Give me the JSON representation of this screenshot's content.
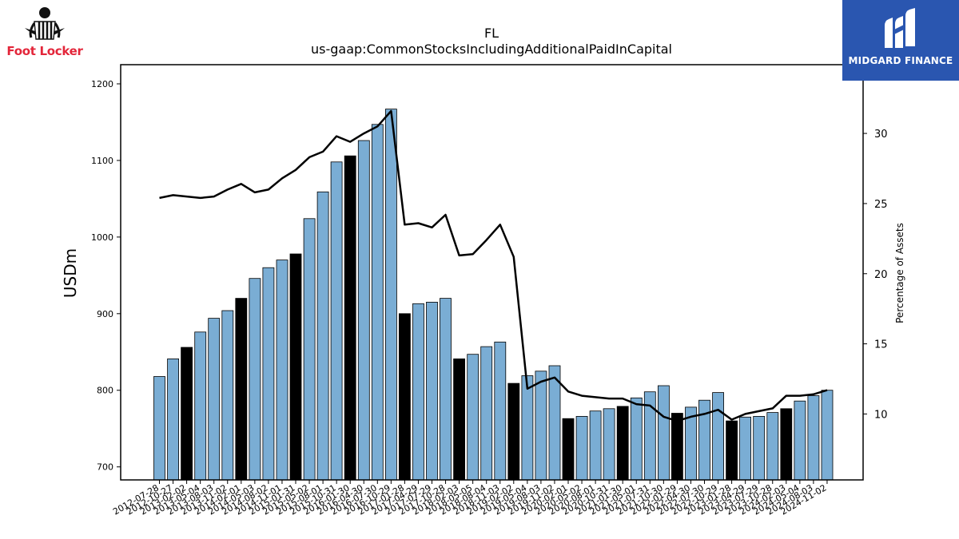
{
  "title": {
    "ticker": "FL",
    "metric": "us-gaap:CommonStocksIncludingAdditionalPaidInCapital"
  },
  "logos": {
    "left": {
      "text": "Foot Locker",
      "color": "#e3263a"
    },
    "right": {
      "text": "MIDGARD FINANCE",
      "background": "#2a56b0"
    }
  },
  "chart_data": {
    "type": "bar",
    "xlabel": "",
    "ylabel": "USDm",
    "y2label": "Percentage of Assets",
    "ylim": [
      683,
      1225
    ],
    "y2lim": [
      5.3,
      34.9
    ],
    "yticks": [
      700,
      800,
      900,
      1000,
      1100,
      1200
    ],
    "y2ticks": [
      10,
      15,
      20,
      25,
      30
    ],
    "grid": false,
    "colors": {
      "bar": "#7aadd4",
      "bar_fiscal_year_end": "#000000",
      "line": "#000000"
    },
    "categories": [
      "2012-07-28",
      "2012-10-27",
      "2013-02-02",
      "2013-05-04",
      "2013-08-03",
      "2013-11-02",
      "2014-02-01",
      "2014-05-03",
      "2014-08-02",
      "2014-11-01",
      "2015-01-31",
      "2015-05-02",
      "2015-08-01",
      "2015-10-31",
      "2016-01-30",
      "2016-04-30",
      "2016-07-30",
      "2016-10-29",
      "2017-01-28",
      "2017-04-29",
      "2017-07-29",
      "2017-10-28",
      "2018-02-03",
      "2018-05-05",
      "2018-08-04",
      "2018-11-03",
      "2019-02-02",
      "2019-05-04",
      "2019-08-03",
      "2019-11-02",
      "2020-02-01",
      "2020-05-02",
      "2020-08-01",
      "2020-10-31",
      "2021-01-30",
      "2021-05-01",
      "2021-07-31",
      "2021-10-30",
      "2022-01-29",
      "2022-04-30",
      "2022-07-30",
      "2022-10-29",
      "2023-01-28",
      "2023-04-29",
      "2023-07-29",
      "2023-10-28",
      "2024-02-03",
      "2024-05-04",
      "2024-08-03",
      "2024-11-02"
    ],
    "series": [
      {
        "type": "bar",
        "values": [
          818,
          841,
          856,
          876,
          894,
          904,
          920,
          946,
          960,
          970,
          978,
          1024,
          1059,
          1098,
          1106,
          1126,
          1147,
          1167,
          900,
          913,
          915,
          920,
          841,
          847,
          857,
          863,
          809,
          819,
          825,
          832,
          763,
          766,
          773,
          776,
          779,
          790,
          798,
          806,
          770,
          778,
          787,
          797,
          760,
          765,
          766,
          771,
          776,
          786,
          793,
          800
        ],
        "fiscal_year_end": [
          false,
          false,
          true,
          false,
          false,
          false,
          true,
          false,
          false,
          false,
          true,
          false,
          false,
          false,
          true,
          false,
          false,
          false,
          true,
          false,
          false,
          false,
          true,
          false,
          false,
          false,
          true,
          false,
          false,
          false,
          true,
          false,
          false,
          false,
          true,
          false,
          false,
          false,
          true,
          false,
          false,
          false,
          true,
          false,
          false,
          false,
          true,
          false,
          false,
          false
        ]
      },
      {
        "type": "line",
        "axis": "right",
        "values": [
          25.4,
          25.6,
          25.5,
          25.4,
          25.5,
          26.0,
          26.4,
          25.8,
          26.0,
          26.8,
          27.4,
          28.3,
          28.7,
          29.8,
          29.4,
          30.0,
          30.5,
          31.6,
          23.5,
          23.6,
          23.3,
          24.2,
          21.3,
          21.4,
          22.4,
          23.5,
          21.2,
          11.8,
          12.3,
          12.6,
          11.6,
          11.3,
          11.2,
          11.1,
          11.1,
          10.7,
          10.6,
          9.8,
          9.5,
          9.8,
          10.0,
          10.3,
          9.6,
          10.0,
          10.2,
          10.4,
          11.3,
          11.3,
          11.4,
          11.7
        ]
      }
    ]
  }
}
